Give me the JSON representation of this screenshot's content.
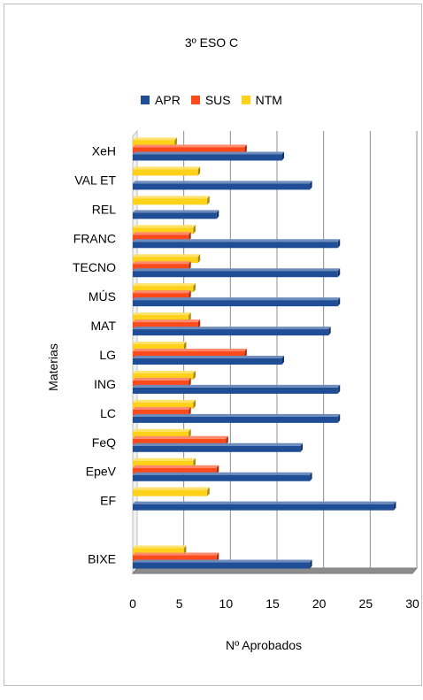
{
  "chart_data": {
    "type": "bar",
    "orientation": "horizontal",
    "title": "3º ESO C",
    "xlabel": "Nº Aprobados",
    "ylabel": "Materias",
    "xlim": [
      0,
      30
    ],
    "xticks": [
      0,
      5,
      10,
      15,
      20,
      25,
      30
    ],
    "grid": true,
    "legend_position": "top",
    "categories": [
      "XeH",
      "VAL ET",
      "REL",
      "FRANC",
      "TECNO",
      "MÚS",
      "MAT",
      "LG",
      "ING",
      "LC",
      "FeQ",
      "EpeV",
      "EF",
      "",
      "BIXE"
    ],
    "series": [
      {
        "name": "APR",
        "color": "#1f4e96",
        "values": [
          16,
          19,
          9,
          22,
          22,
          22,
          21,
          16,
          22,
          22,
          18,
          19,
          28,
          null,
          19
        ]
      },
      {
        "name": "SUS",
        "color": "#ff4a1c",
        "values": [
          12,
          null,
          null,
          6,
          6,
          6,
          7,
          12,
          6,
          6,
          10,
          9,
          null,
          null,
          9
        ]
      },
      {
        "name": "NTM",
        "color": "#ffd21a",
        "values": [
          4.5,
          7,
          8,
          6.5,
          7,
          6.5,
          6,
          5.5,
          6.5,
          6.5,
          6,
          6.5,
          8,
          null,
          5.5
        ]
      }
    ]
  }
}
